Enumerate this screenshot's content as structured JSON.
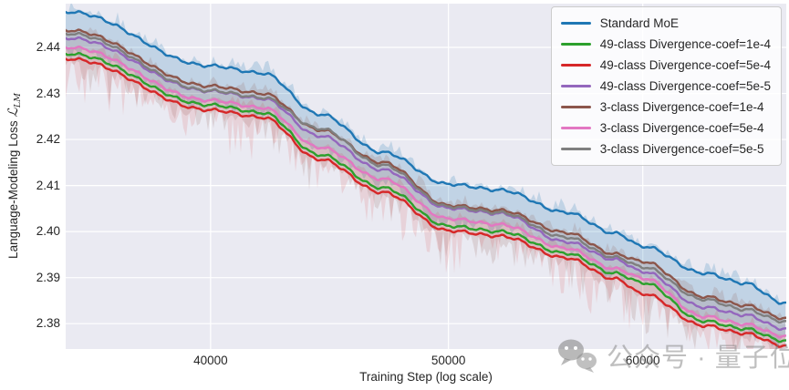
{
  "figure": {
    "xlabel": "Training Step (log scale)",
    "ylabel_prefix": "Language-Modeling Loss ",
    "ylabel_math": "ℒ",
    "ylabel_sub": "LM",
    "watermark_text": "公众号 · 量子位",
    "background_color": "#ffffff",
    "plot_background_color": "#eaeaf2",
    "grid_color": "#ffffff",
    "text_color": "#262626",
    "legend_border_color": "#cccccc"
  },
  "chart_data": {
    "type": "line",
    "title": "",
    "xlabel": "Training Step (log scale)",
    "ylabel": "Language-Modeling Loss L_LM",
    "x_scale": "log",
    "grid": true,
    "legend_position": "upper right",
    "xlim": [
      34916,
      68644
    ],
    "ylim": [
      2.3745,
      2.4495
    ],
    "x_ticks": [
      "40000",
      "50000",
      "60000"
    ],
    "y_ticks": [
      "2.38",
      "2.39",
      "2.40",
      "2.41",
      "2.42",
      "2.43",
      "2.44"
    ],
    "steps": [
      35000,
      40000,
      42000,
      44300,
      47000,
      50000,
      52500,
      55800,
      58500,
      60000,
      63500,
      66000,
      68500
    ],
    "series": [
      {
        "name": "Standard MoE",
        "color": "#1f77b4",
        "values": [
          2.4477,
          2.436,
          2.4344,
          2.4255,
          2.4172,
          2.4103,
          2.409,
          2.4042,
          2.3996,
          2.3968,
          2.391,
          2.3888,
          2.3845
        ]
      },
      {
        "name": "49-class Divergence-coef=1e-4",
        "color": "#2ca02c",
        "values": [
          2.4386,
          2.4275,
          2.4258,
          2.4167,
          2.4095,
          2.4012,
          2.4,
          2.3953,
          2.3909,
          2.3889,
          2.3806,
          2.3789,
          2.3763
        ]
      },
      {
        "name": "49-class Divergence-coef=5e-4",
        "color": "#d62728",
        "values": [
          2.4375,
          2.4264,
          2.4248,
          2.4157,
          2.4085,
          2.4002,
          2.399,
          2.3943,
          2.3897,
          2.3865,
          2.3796,
          2.3779,
          2.3752
        ]
      },
      {
        "name": "49-class Divergence-coef=5e-5",
        "color": "#9467bd",
        "values": [
          2.442,
          2.4305,
          2.4289,
          2.4208,
          2.4134,
          2.4051,
          2.4039,
          2.3978,
          2.3939,
          2.3913,
          2.3836,
          2.3819,
          2.3789
        ]
      },
      {
        "name": "3-class Divergence-coef=1e-4",
        "color": "#8c564b",
        "values": [
          2.4437,
          2.4316,
          2.43,
          2.4221,
          2.415,
          2.4057,
          2.4046,
          2.3998,
          2.3951,
          2.3935,
          2.3859,
          2.384,
          2.3812
        ]
      },
      {
        "name": "3-class Divergence-coef=5e-4",
        "color": "#e377c2",
        "values": [
          2.44,
          2.4285,
          2.4269,
          2.4183,
          2.4114,
          2.4028,
          2.4015,
          2.3964,
          2.3919,
          2.3899,
          2.3816,
          2.3799,
          2.3773
        ]
      },
      {
        "name": "3-class Divergence-coef=5e-5",
        "color": "#7f7f7f",
        "values": [
          2.443,
          2.4306,
          2.4291,
          2.4224,
          2.4144,
          2.4054,
          2.4041,
          2.3988,
          2.3944,
          2.3923,
          2.3853,
          2.3831,
          2.3805
        ]
      }
    ],
    "bands": [
      {
        "name": "standard-moe-raw-range",
        "top_series": 0,
        "bottom_series": 5,
        "color": "rgba(31,119,180,0.20)",
        "up": 14,
        "down": 18,
        "seed": 7
      },
      {
        "name": "divergence-raw-range-brown",
        "top_series": 4,
        "bottom_series": 2,
        "color": "rgba(140,86,75,0.17)",
        "up": 13,
        "down": 44,
        "seed": 13
      },
      {
        "name": "divergence-raw-range-red",
        "top_series": 5,
        "bottom_series": 2,
        "color": "rgba(214,39,40,0.12)",
        "up": 9,
        "down": 55,
        "seed": 29
      }
    ],
    "wiggle": {
      "amp": 1.7,
      "period": 21
    }
  }
}
